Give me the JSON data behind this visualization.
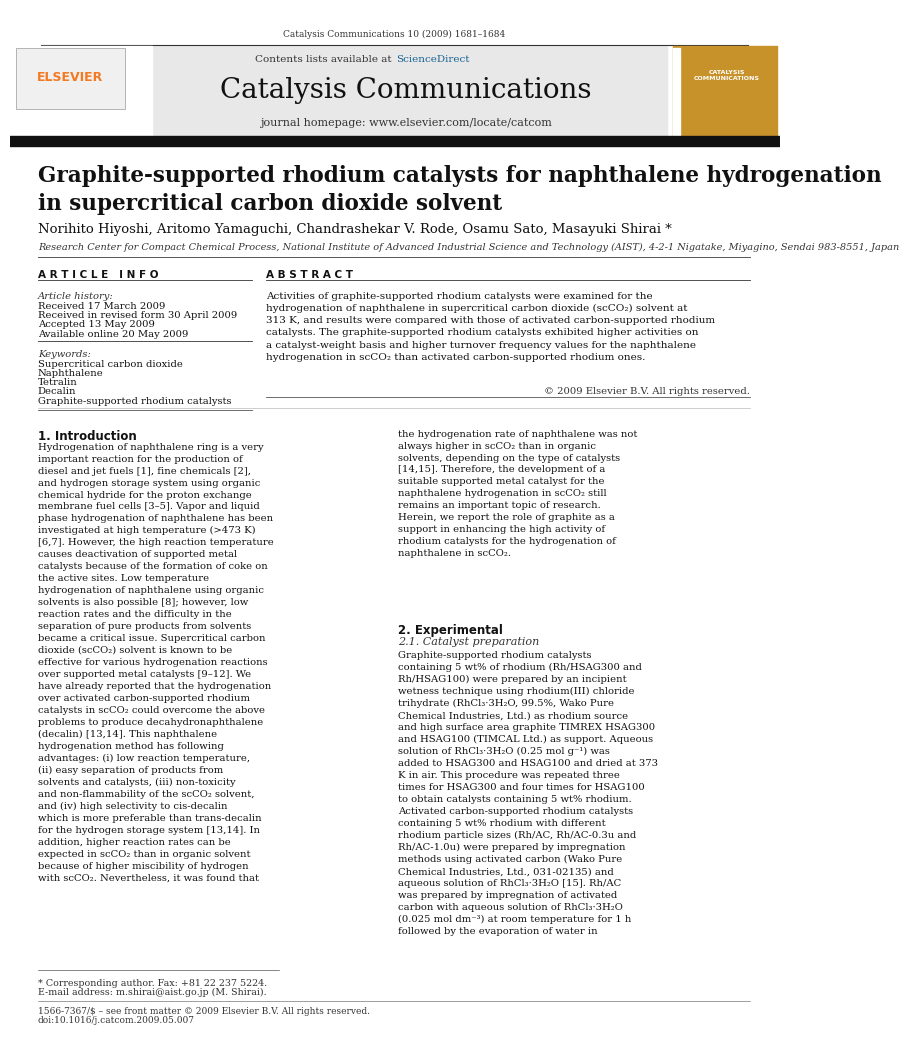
{
  "page_width": 9.92,
  "page_height": 13.23,
  "background_color": "#ffffff",
  "journal_ref": "Catalysis Communications 10 (2009) 1681–1684",
  "contents_line": "Contents lists available at ",
  "sciencedirect_text": "ScienceDirect",
  "sciencedirect_color": "#1a6496",
  "journal_name": "Catalysis Communications",
  "journal_homepage": "journal homepage: www.elsevier.com/locate/catcom",
  "header_bg": "#e8e8e8",
  "thick_bar_color": "#111111",
  "title_line1": "Graphite-supported rhodium catalysts for naphthalene hydrogenation",
  "title_line2": "in supercritical carbon dioxide solvent",
  "authors": "Norihito Hiyoshi, Aritomo Yamaguchi, Chandrashekar V. Rode, Osamu Sato, Masayuki Shirai *",
  "affiliation": "Research Center for Compact Chemical Process, National Institute of Advanced Industrial Science and Technology (AIST), 4-2-1 Nigatake, Miyagino, Sendai 983-8551, Japan",
  "article_info_header": "A R T I C L E   I N F O",
  "abstract_header": "A B S T R A C T",
  "article_history_label": "Article history:",
  "received": "Received 17 March 2009",
  "received_revised": "Received in revised form 30 April 2009",
  "accepted": "Accepted 13 May 2009",
  "available": "Available online 20 May 2009",
  "keywords_label": "Keywords:",
  "keywords": [
    "Supercritical carbon dioxide",
    "Naphthalene",
    "Tetralin",
    "Decalin",
    "Graphite-supported rhodium catalysts"
  ],
  "abstract_text": "Activities of graphite-supported rhodium catalysts were examined for the hydrogenation of naphthalene in supercritical carbon dioxide (scCO₂) solvent at 313 K, and results were compared with those of activated carbon-supported rhodium catalysts. The graphite-supported rhodium catalysts exhibited higher activities on a catalyst-weight basis and higher turnover frequency values for the naphthalene hydrogenation in scCO₂ than activated carbon-supported rhodium ones.",
  "copyright": "© 2009 Elsevier B.V. All rights reserved.",
  "section1_header": "1. Introduction",
  "intro_col1_para1": "     Hydrogenation of naphthalene ring is a very important reaction for the production of diesel and jet fuels [1], fine chemicals [2], and hydrogen storage system using organic chemical hydride for the proton exchange membrane fuel cells [3–5]. Vapor and liquid phase hydrogenation of naphthalene has been investigated at high temperature (>473 K) [6,7]. However, the high reaction temperature causes deactivation of supported metal catalysts because of the formation of coke on the active sites. Low temperature hydrogenation of naphthalene using organic solvents is also possible [8]; however, low reaction rates and the difficulty in the separation of pure products from solvents became a critical issue. Supercritical carbon dioxide (scCO₂) solvent is known to be effective for various hydrogenation reactions over supported metal catalysts [9–12]. We have already reported that the hydrogenation over activated carbon-supported rhodium catalysts in scCO₂ could overcome the above problems to produce decahydronaphthalene (decalin) [13,14]. This naphthalene hydrogenation method has following advantages: (i) low reaction temperature, (ii) easy separation of products from solvents and catalysts, (iii) non-toxicity and non-flammability of the scCO₂ solvent, and (iv) high selectivity to cis-decalin which is more preferable than trans-decalin for the hydrogen storage system [13,14]. In addition, higher reaction rates can be expected in scCO₂ than in organic solvent because of higher miscibility of hydrogen with scCO₂. Nevertheless, it was found that",
  "intro_col2_para1": "the hydrogenation rate of naphthalene was not always higher in scCO₂ than in organic solvents, depending on the type of catalysts [14,15]. Therefore, the development of a suitable supported metal catalyst for the naphthalene hydrogenation in scCO₂ still remains an important topic of research. Herein, we report the role of graphite as a support in enhancing the high activity of rhodium catalysts for the hydrogenation of naphthalene in scCO₂.",
  "section2_header": "2. Experimental",
  "section21_header": "2.1. Catalyst preparation",
  "exp_col2_text": "     Graphite-supported rhodium catalysts containing 5 wt% of rhodium (Rh/HSAG300 and Rh/HSAG100) were prepared by an incipient wetness technique using rhodium(III) chloride trihydrate (RhCl₃·3H₂O, 99.5%, Wako Pure Chemical Industries, Ltd.) as rhodium source and high surface area graphite TIMREX HSAG300 and HSAG100 (TIMCAL Ltd.) as support. Aqueous solution of RhCl₃·3H₂O (0.25 mol g⁻¹) was added to HSAG300 and HSAG100 and dried at 373 K in air. This procedure was repeated three times for HSAG300 and four times for HSAG100 to obtain catalysts containing 5 wt% rhodium. Activated carbon-supported rhodium catalysts containing 5 wt% rhodium with different rhodium particle sizes (Rh/AC, Rh/AC-0.3u and Rh/AC-1.0u) were prepared by impregnation methods using activated carbon (Wako Pure Chemical Industries, Ltd., 031-02135) and aqueous solution of RhCl₃·3H₂O [15]. Rh/AC was prepared by impregnation of activated carbon with aqueous solution of RhCl₃·3H₂O (0.025 mol dm⁻³) at room temperature for 1 h followed by the evaporation of water in",
  "footnote_star": "* Corresponding author. Fax: +81 22 237 5224.",
  "footnote_email": "E-mail address: m.shirai@aist.go.jp (M. Shirai).",
  "footer_issn": "1566-7367/$ – see front matter © 2009 Elsevier B.V. All rights reserved.",
  "footer_doi": "doi:10.1016/j.catcom.2009.05.007",
  "elsevier_orange": "#f47920",
  "link_blue": "#1a6496"
}
